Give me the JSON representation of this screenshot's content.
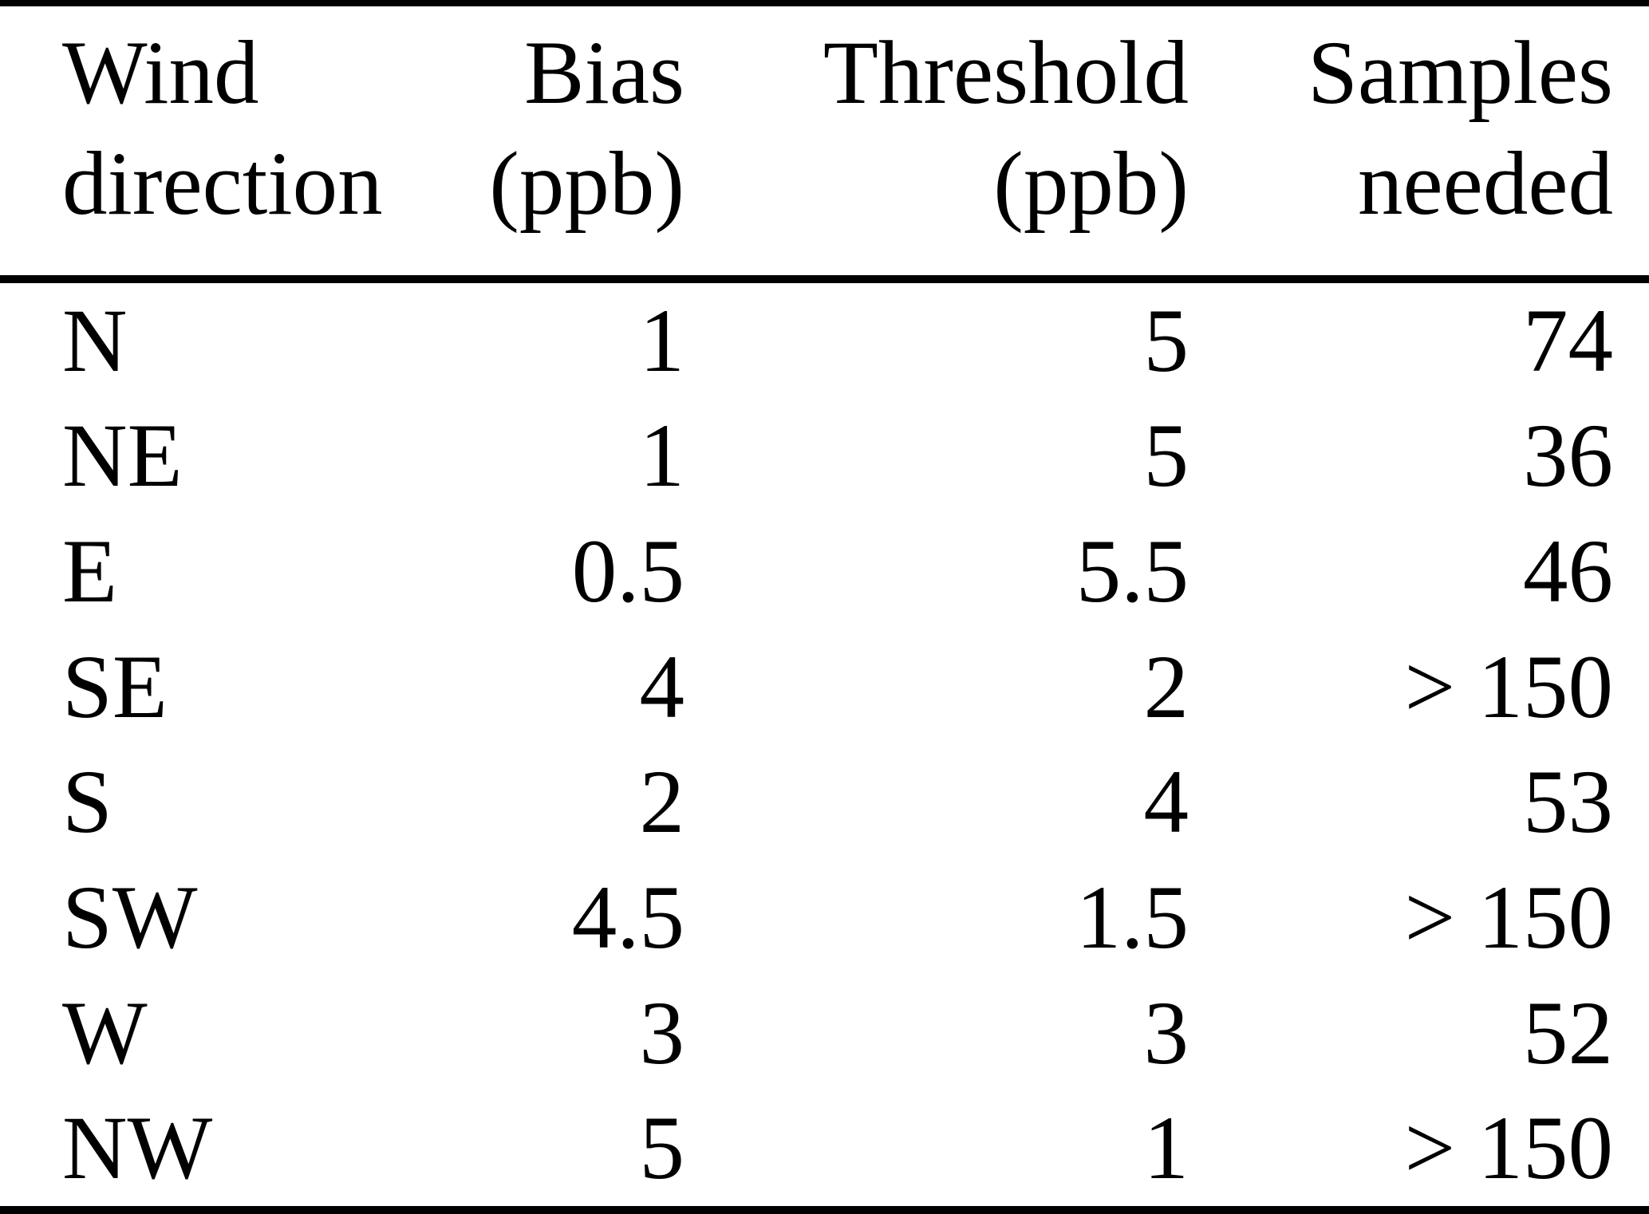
{
  "colors": {
    "text": "#000000",
    "rule": "#000000",
    "background": "#ffffff"
  },
  "table": {
    "header": {
      "col1": {
        "line1": "Wind",
        "line2": "direction"
      },
      "col2": {
        "line1": "Bias",
        "line2": "(ppb)"
      },
      "col3": {
        "line1": "Threshold",
        "line2": "(ppb)"
      },
      "col4": {
        "line1": "Samples",
        "line2": "needed"
      }
    },
    "rows": [
      {
        "direction": "N",
        "bias": "1",
        "threshold": "5",
        "samples": "74"
      },
      {
        "direction": "NE",
        "bias": "1",
        "threshold": "5",
        "samples": "36"
      },
      {
        "direction": "E",
        "bias": "0.5",
        "threshold": "5.5",
        "samples": "46"
      },
      {
        "direction": "SE",
        "bias": "4",
        "threshold": "2",
        "samples": "> 150"
      },
      {
        "direction": "S",
        "bias": "2",
        "threshold": "4",
        "samples": "53"
      },
      {
        "direction": "SW",
        "bias": "4.5",
        "threshold": "1.5",
        "samples": "> 150"
      },
      {
        "direction": "W",
        "bias": "3",
        "threshold": "3",
        "samples": "52"
      },
      {
        "direction": "NW",
        "bias": "5",
        "threshold": "1",
        "samples": "> 150"
      }
    ]
  },
  "chart_data": {
    "type": "table",
    "columns": [
      "Wind direction",
      "Bias (ppb)",
      "Threshold (ppb)",
      "Samples needed"
    ],
    "rows": [
      [
        "N",
        1,
        5,
        "74"
      ],
      [
        "NE",
        1,
        5,
        "36"
      ],
      [
        "E",
        0.5,
        5.5,
        "46"
      ],
      [
        "SE",
        4,
        2,
        "> 150"
      ],
      [
        "S",
        2,
        4,
        "53"
      ],
      [
        "SW",
        4.5,
        1.5,
        "> 150"
      ],
      [
        "W",
        3,
        3,
        "52"
      ],
      [
        "NW",
        5,
        1,
        "> 150"
      ]
    ]
  }
}
